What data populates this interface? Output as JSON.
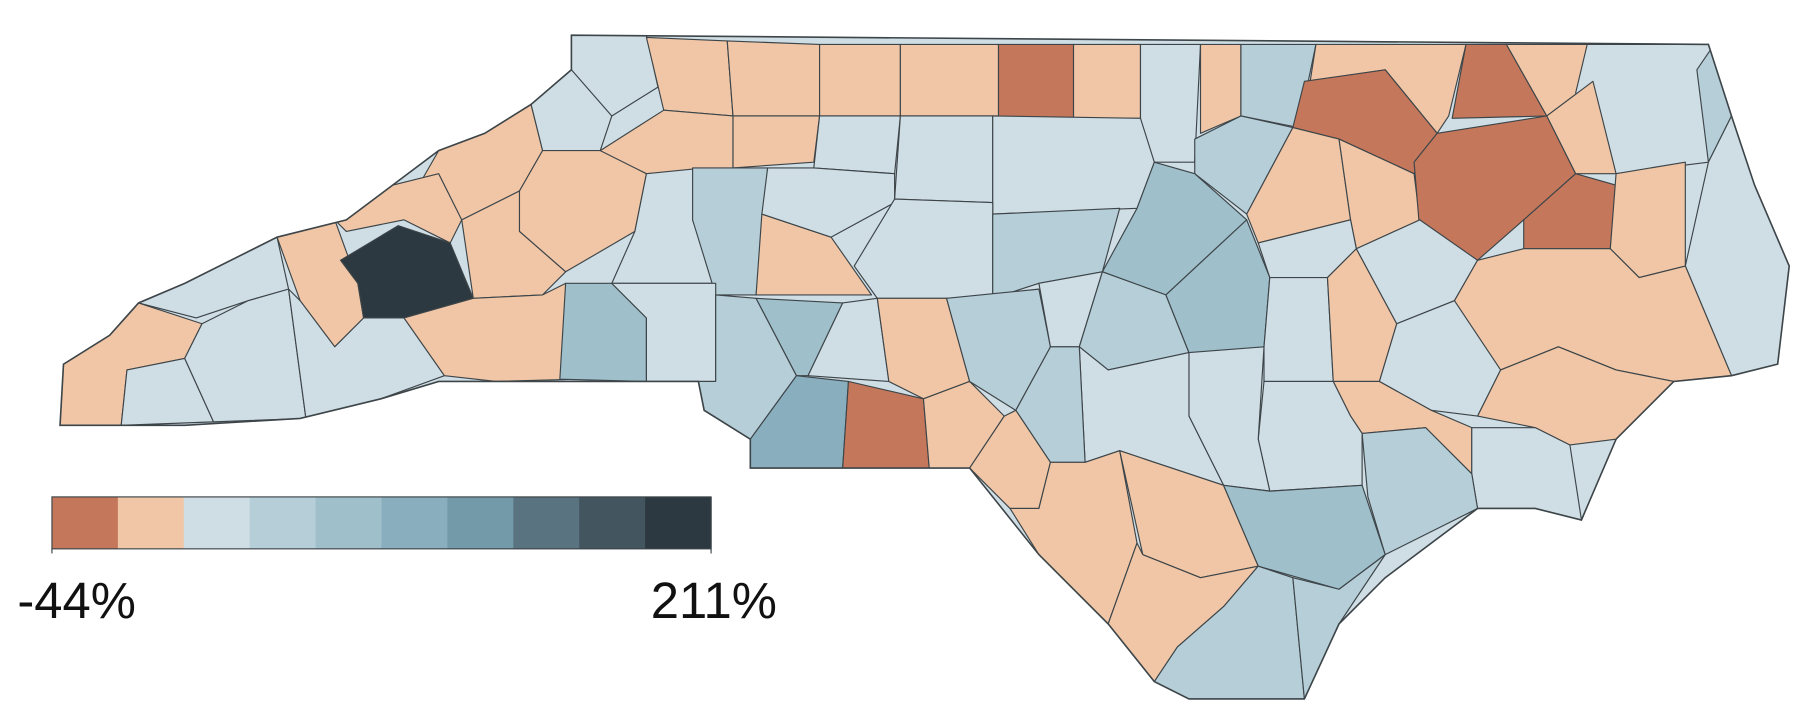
{
  "legend": {
    "colors": [
      "#c4775a",
      "#f0c6a6",
      "#cfdee5",
      "#b6ced8",
      "#9fbfcb",
      "#89afbf",
      "#739aa8",
      "#5a7380",
      "#43555f",
      "#2d3940"
    ],
    "min": {
      "value": -44,
      "label": "-44%"
    },
    "max": {
      "value": 211,
      "label": "211%"
    }
  }
}
